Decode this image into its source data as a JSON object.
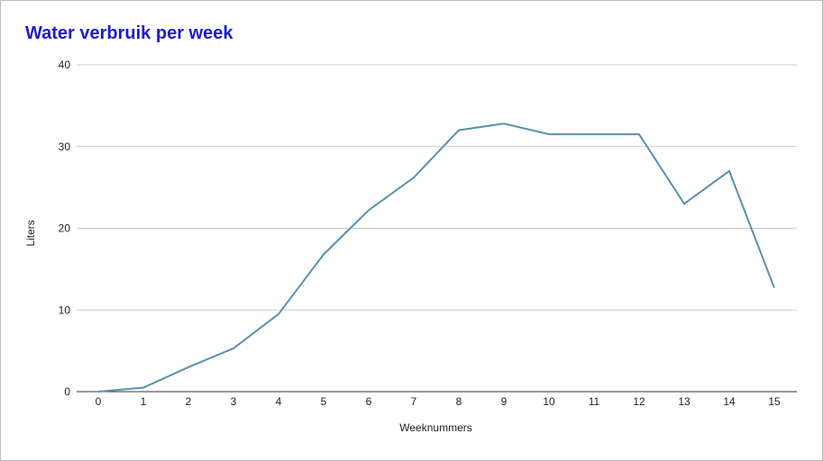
{
  "chart_data": {
    "type": "line",
    "title": "Water verbruik per week",
    "xlabel": "Weeknummers",
    "ylabel": "Liters",
    "x": [
      0,
      1,
      2,
      3,
      4,
      5,
      6,
      7,
      8,
      9,
      10,
      11,
      12,
      13,
      14,
      15
    ],
    "series": [
      {
        "values": [
          0,
          0.5,
          3,
          5.3,
          9.5,
          16.8,
          22.2,
          26.2,
          32,
          32.8,
          31.5,
          31.5,
          31.5,
          23,
          27,
          12.7
        ]
      }
    ],
    "xlim": [
      0,
      15
    ],
    "ylim": [
      0,
      40
    ],
    "yticks": [
      0,
      10,
      20,
      30,
      40
    ],
    "xticks": [
      "0",
      "1",
      "2",
      "3",
      "4",
      "5",
      "6",
      "7",
      "8",
      "9",
      "10",
      "11",
      "12",
      "13",
      "14",
      "15"
    ],
    "grid": true,
    "legend": "none",
    "colors": {
      "line": "#5b8fae",
      "title": "#1c1ad6",
      "grid": "#cccccc",
      "axis": "#333333"
    }
  }
}
